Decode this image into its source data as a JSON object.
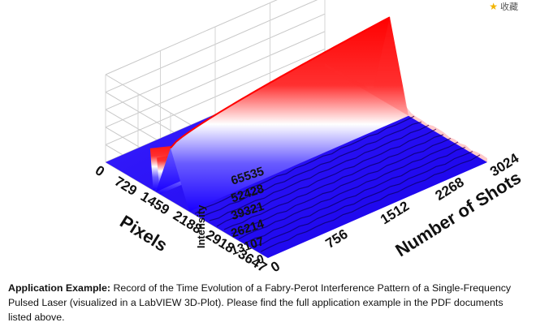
{
  "favorite": {
    "icon": "star-icon",
    "label": "收藏"
  },
  "caption": {
    "bold": "Application Example:",
    "text": " Record of the Time Evolution of a Fabry-Perot Interference Pattern of a Single-Frequency Pulsed Laser (visualized in a LabVIEW 3D-Plot). Please find the full application example in the PDF documents listed above."
  },
  "chart_data": {
    "type": "surface3d",
    "zlabel": "Intensity",
    "xlabel": "Pixels",
    "ylabel": "Number of Shots",
    "z_ticks": [
      0,
      13107,
      26214,
      39321,
      52428,
      65535
    ],
    "x_ticks": [
      0,
      729,
      1459,
      2188,
      2918,
      3647
    ],
    "y_ticks": [
      0,
      756,
      1512,
      2268,
      3024
    ],
    "zlim": [
      0,
      65535
    ],
    "colors": {
      "low": "#1a00ff",
      "mid": "#ffffff",
      "high": "#ff0000"
    },
    "peaks": [
      {
        "pixel": 1459,
        "intensity_start": 39321,
        "intensity_end": 65535
      },
      {
        "pixel": 1000,
        "intensity_start": 30000,
        "intensity_end": 6000
      },
      {
        "pixel": 1150,
        "intensity_start": 26000,
        "intensity_end": 5000
      }
    ]
  }
}
